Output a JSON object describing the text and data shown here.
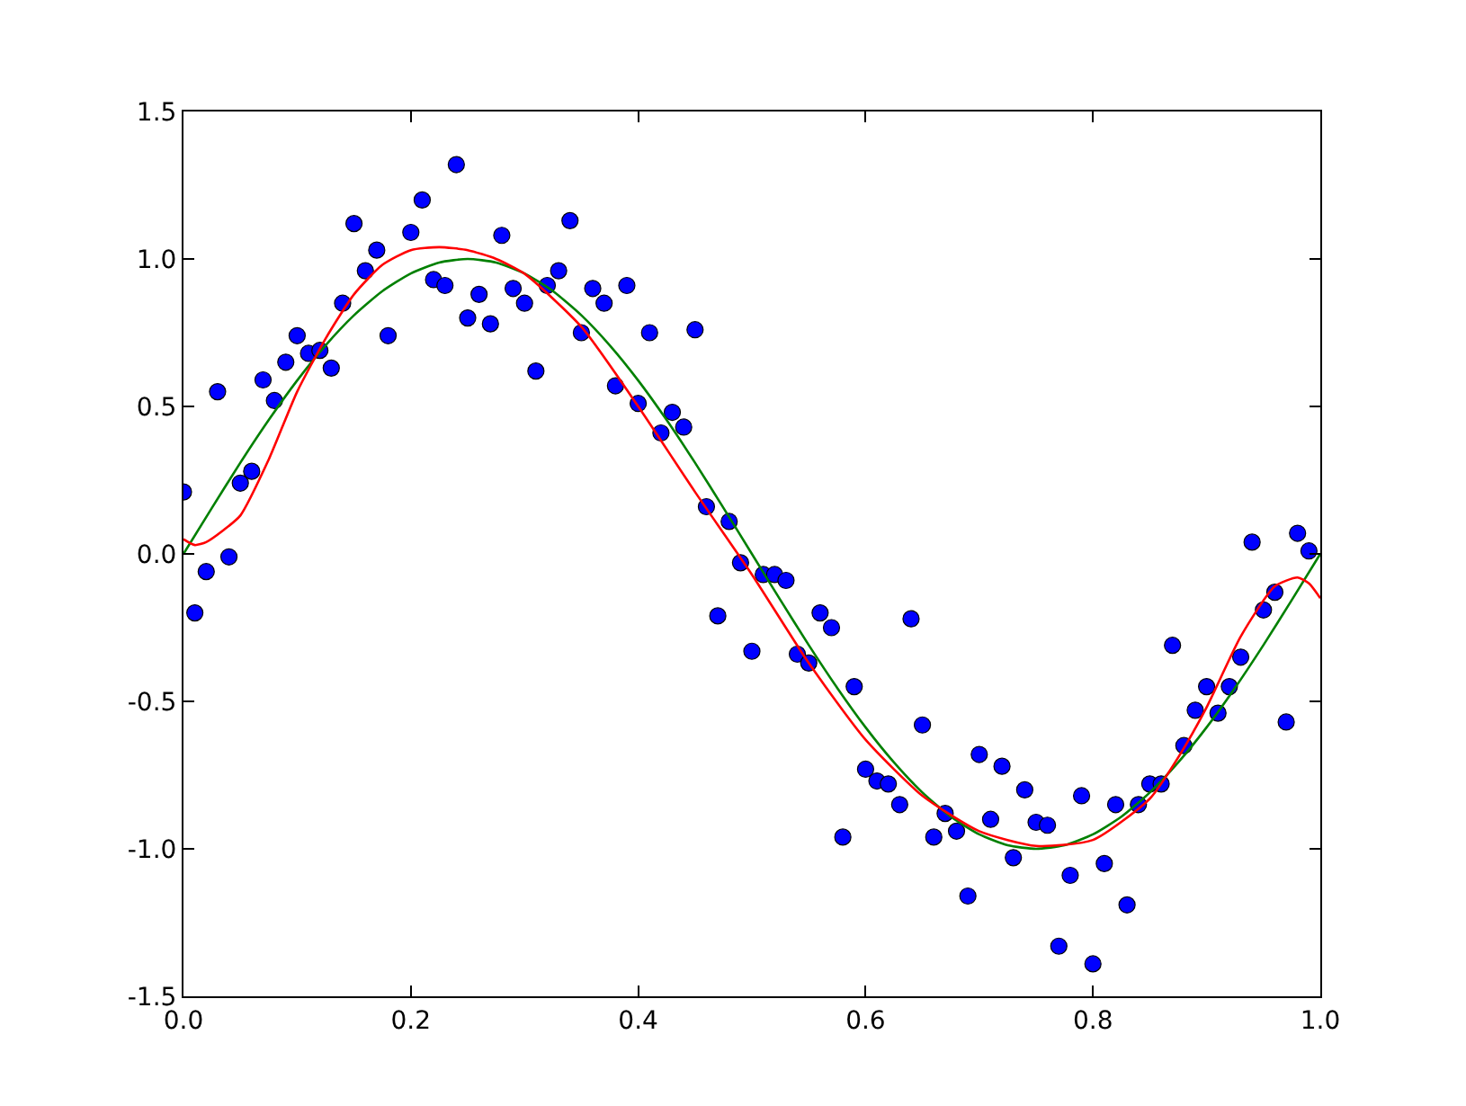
{
  "chart_data": {
    "type": "scatter",
    "xlim": [
      0.0,
      1.0
    ],
    "ylim": [
      -1.5,
      1.5
    ],
    "xticks": [
      {
        "value": 0.0,
        "label": "0.0"
      },
      {
        "value": 0.2,
        "label": "0.2"
      },
      {
        "value": 0.4,
        "label": "0.4"
      },
      {
        "value": 0.6,
        "label": "0.6"
      },
      {
        "value": 0.8,
        "label": "0.8"
      },
      {
        "value": 1.0,
        "label": "1.0"
      }
    ],
    "yticks": [
      {
        "value": -1.5,
        "label": "-1.5"
      },
      {
        "value": -1.0,
        "label": "-1.0"
      },
      {
        "value": -0.5,
        "label": "-0.5"
      },
      {
        "value": 0.0,
        "label": "0.0"
      },
      {
        "value": 0.5,
        "label": "0.5"
      },
      {
        "value": 1.0,
        "label": "1.0"
      },
      {
        "value": 1.5,
        "label": "1.5"
      }
    ],
    "grid": false,
    "series": [
      {
        "marker": "circle",
        "color": "#0000ff",
        "x": [
          0.0,
          0.01,
          0.02,
          0.03,
          0.04,
          0.05,
          0.06,
          0.07,
          0.08,
          0.09,
          0.1,
          0.11,
          0.12,
          0.13,
          0.14,
          0.15,
          0.16,
          0.17,
          0.18,
          0.2,
          0.21,
          0.22,
          0.23,
          0.24,
          0.25,
          0.26,
          0.27,
          0.28,
          0.29,
          0.3,
          0.31,
          0.32,
          0.33,
          0.34,
          0.35,
          0.36,
          0.37,
          0.38,
          0.39,
          0.4,
          0.41,
          0.42,
          0.43,
          0.44,
          0.45,
          0.46,
          0.47,
          0.48,
          0.49,
          0.5,
          0.51,
          0.52,
          0.53,
          0.54,
          0.55,
          0.56,
          0.57,
          0.58,
          0.59,
          0.6,
          0.61,
          0.62,
          0.63,
          0.64,
          0.65,
          0.66,
          0.67,
          0.68,
          0.69,
          0.7,
          0.71,
          0.72,
          0.73,
          0.74,
          0.75,
          0.76,
          0.77,
          0.78,
          0.79,
          0.8,
          0.81,
          0.82,
          0.83,
          0.84,
          0.85,
          0.86,
          0.87,
          0.88,
          0.89,
          0.9,
          0.91,
          0.92,
          0.93,
          0.94,
          0.95,
          0.96,
          0.97,
          0.98,
          0.99
        ],
        "values": [
          0.21,
          -0.2,
          -0.06,
          0.55,
          -0.01,
          0.24,
          0.28,
          0.59,
          0.52,
          0.65,
          0.74,
          0.68,
          0.69,
          0.63,
          0.85,
          1.12,
          0.96,
          1.03,
          0.74,
          1.09,
          1.2,
          0.93,
          0.91,
          1.32,
          0.8,
          0.88,
          0.78,
          1.08,
          0.9,
          0.85,
          0.62,
          0.91,
          0.96,
          1.13,
          0.75,
          0.9,
          0.85,
          0.57,
          0.91,
          0.51,
          0.75,
          0.41,
          0.48,
          0.43,
          0.76,
          0.16,
          -0.21,
          0.11,
          -0.03,
          -0.33,
          -0.07,
          -0.07,
          -0.09,
          -0.34,
          -0.37,
          -0.2,
          -0.25,
          -0.96,
          -0.45,
          -0.73,
          -0.77,
          -0.78,
          -0.85,
          -0.22,
          -0.58,
          -0.96,
          -0.88,
          -0.94,
          -1.16,
          -0.68,
          -0.9,
          -0.72,
          -1.03,
          -0.8,
          -0.91,
          -0.92,
          -1.33,
          -1.09,
          -0.82,
          -1.39,
          -1.05,
          -0.85,
          -1.19,
          -0.85,
          -0.78,
          -0.78,
          -0.31,
          -0.65,
          -0.53,
          -0.45,
          -0.54,
          -0.45,
          -0.35,
          0.04,
          -0.19,
          -0.13,
          -0.57,
          0.07,
          0.01
        ]
      },
      {
        "type": "line",
        "marker": "none",
        "line_style": "solid",
        "color": "#008000",
        "x": [
          0,
          0.025,
          0.05,
          0.075,
          0.1,
          0.125,
          0.15,
          0.175,
          0.2,
          0.225,
          0.25,
          0.275,
          0.3,
          0.325,
          0.35,
          0.375,
          0.4,
          0.425,
          0.45,
          0.475,
          0.5,
          0.525,
          0.55,
          0.575,
          0.6,
          0.625,
          0.65,
          0.675,
          0.7,
          0.725,
          0.75,
          0.775,
          0.8,
          0.825,
          0.85,
          0.875,
          0.9,
          0.925,
          0.95,
          0.975,
          1.0
        ],
        "values": [
          0,
          0.156,
          0.309,
          0.454,
          0.588,
          0.707,
          0.809,
          0.891,
          0.951,
          0.988,
          1.0,
          0.988,
          0.951,
          0.891,
          0.809,
          0.707,
          0.588,
          0.454,
          0.309,
          0.156,
          0,
          -0.156,
          -0.309,
          -0.454,
          -0.588,
          -0.707,
          -0.809,
          -0.891,
          -0.951,
          -0.988,
          -1.0,
          -0.988,
          -0.951,
          -0.891,
          -0.809,
          -0.707,
          -0.588,
          -0.454,
          -0.309,
          -0.156,
          0
        ]
      },
      {
        "type": "line",
        "marker": "none",
        "line_style": "solid",
        "color": "#ff0000",
        "x": [
          0,
          0.01,
          0.02,
          0.035,
          0.05,
          0.075,
          0.1,
          0.125,
          0.15,
          0.175,
          0.2,
          0.225,
          0.25,
          0.275,
          0.3,
          0.35,
          0.4,
          0.45,
          0.5,
          0.55,
          0.6,
          0.65,
          0.7,
          0.75,
          0.8,
          0.85,
          0.875,
          0.9,
          0.93,
          0.96,
          0.98,
          0.99,
          1.0
        ],
        "values": [
          0.05,
          0.03,
          0.04,
          0.08,
          0.13,
          0.32,
          0.55,
          0.73,
          0.88,
          0.98,
          1.03,
          1.04,
          1.03,
          1.0,
          0.95,
          0.77,
          0.5,
          0.21,
          -0.07,
          -0.37,
          -0.63,
          -0.82,
          -0.94,
          -0.99,
          -0.97,
          -0.83,
          -0.69,
          -0.52,
          -0.28,
          -0.11,
          -0.08,
          -0.1,
          -0.15
        ]
      }
    ]
  }
}
